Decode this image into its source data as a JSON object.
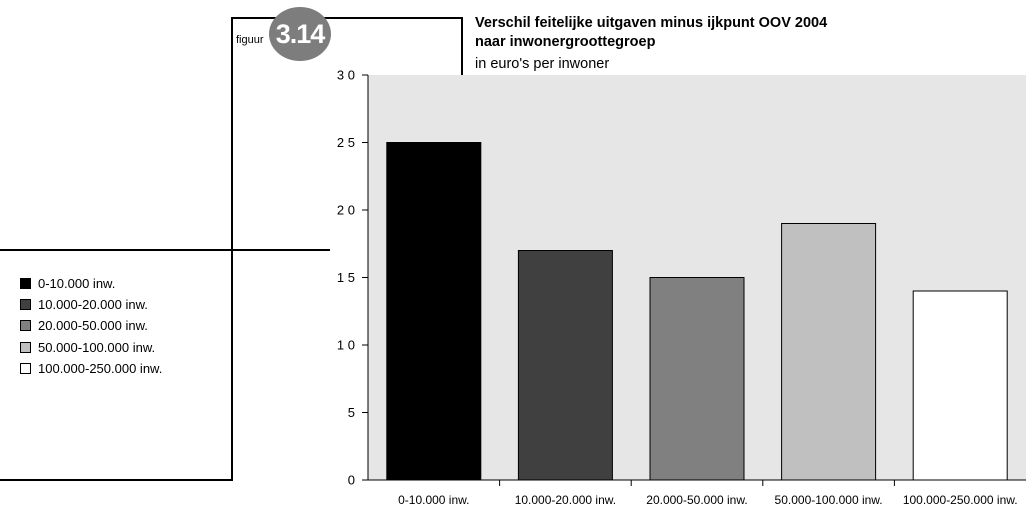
{
  "figure": {
    "label": "figuur",
    "number": "3.14"
  },
  "chart_data": {
    "type": "bar",
    "title": "Verschil feitelijke uitgaven minus ijkpunt OOV 2004",
    "title_line2": "naar inwonergroottegroep",
    "subtitle": "in euro's per inwoner",
    "categories": [
      "0-10.000 inw.",
      "10.000-20.000 inw.",
      "20.000-50.000 inw.",
      "50.000-100.000 inw.",
      "100.000-250.000 inw."
    ],
    "values": [
      25,
      17,
      15,
      19,
      14
    ],
    "colors": [
      "#000000",
      "#404040",
      "#808080",
      "#c0c0c0",
      "#ffffff"
    ],
    "ylim": [
      0,
      30
    ],
    "yticks": [
      0,
      5,
      10,
      15,
      20,
      25,
      30
    ],
    "ytick_labels": [
      "0",
      "5",
      "1 0",
      "1 5",
      "2 0",
      "2 5",
      "3 0"
    ],
    "plot_background": "#e6e6e6",
    "legend": {
      "position": "left",
      "entries": [
        "0-10.000 inw.",
        "10.000-20.000 inw.",
        "20.000-50.000 inw.",
        "50.000-100.000 inw.",
        "100.000-250.000 inw."
      ]
    }
  }
}
